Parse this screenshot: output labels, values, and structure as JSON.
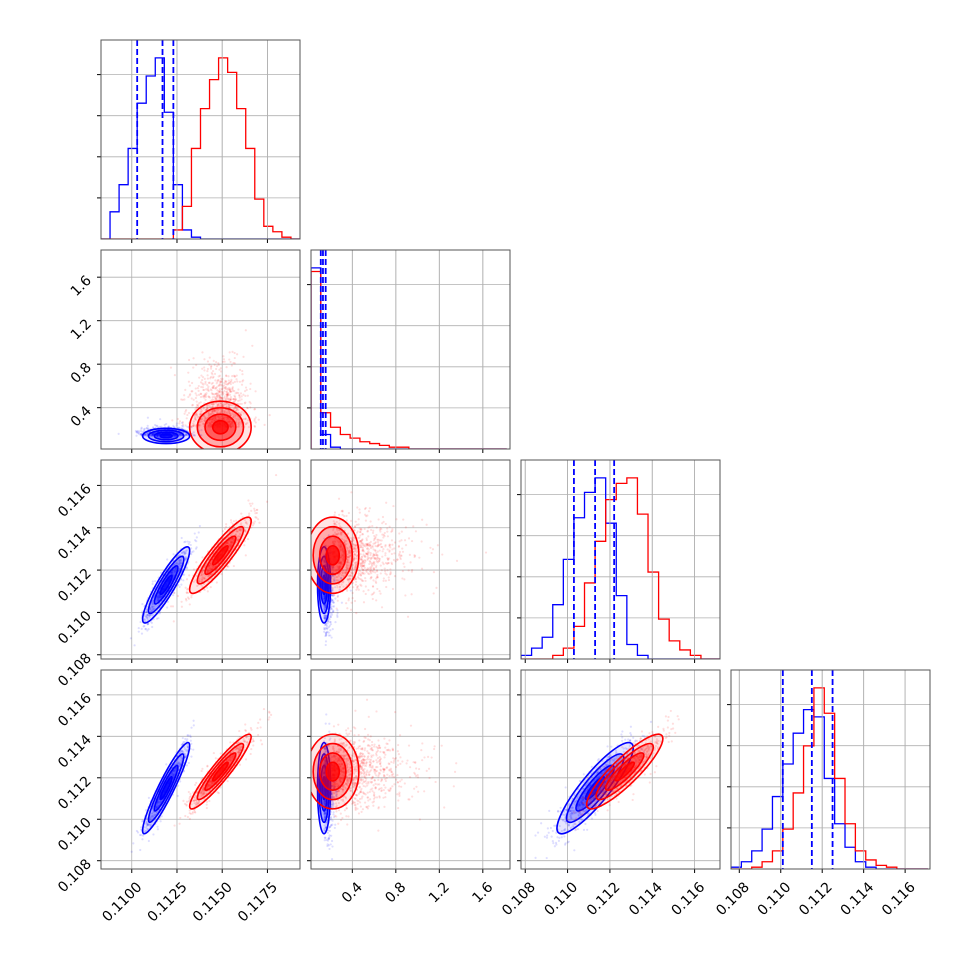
{
  "colors": {
    "blue": "#0000ff",
    "red": "#ff0000"
  },
  "chart_data": {
    "type": "corner",
    "title": "",
    "grid": true,
    "n_params": 4,
    "params": [
      {
        "range": [
          0.1083,
          0.1193
        ],
        "ticks": [
          0.11,
          0.1125,
          0.115,
          0.1175
        ],
        "tick_labels": [
          "0.1100",
          "0.1125",
          "0.1150",
          "0.1175"
        ]
      },
      {
        "range": [
          0.02,
          1.85
        ],
        "ticks": [
          0.4,
          0.8,
          1.2,
          1.6
        ],
        "tick_labels": [
          "0.4",
          "0.8",
          "1.2",
          "1.6"
        ]
      },
      {
        "range": [
          0.1078,
          0.1172
        ],
        "ticks": [
          0.108,
          0.11,
          0.112,
          0.114,
          0.116
        ],
        "tick_labels": [
          "0.108",
          "0.110",
          "0.112",
          "0.114",
          "0.116"
        ]
      },
      {
        "range": [
          0.1076,
          0.1172
        ],
        "ticks": [
          0.108,
          0.11,
          0.112,
          0.114,
          0.116
        ],
        "tick_labels": [
          "0.108",
          "0.110",
          "0.112",
          "0.114",
          "0.116"
        ]
      }
    ],
    "series": [
      {
        "color": "blue",
        "mean": [
          0.1119,
          0.14,
          0.1113,
          0.1115
        ],
        "sd": [
          0.00065,
          0.02,
          0.0009,
          0.0011
        ],
        "corr": [
          [
            1,
            0,
            0.9,
            0.93
          ],
          [
            0,
            1,
            0,
            0
          ],
          [
            0.9,
            0,
            1,
            0.88
          ],
          [
            0.93,
            0,
            0.88,
            1
          ]
        ]
      },
      {
        "color": "red",
        "mean": [
          0.1149,
          0.22,
          0.1127,
          0.1123
        ],
        "sd": [
          0.00085,
          0.2,
          0.0009,
          0.0009
        ],
        "corr": [
          [
            1,
            0,
            0.9,
            0.93
          ],
          [
            0,
            1,
            0,
            0
          ],
          [
            0.9,
            0,
            1,
            0.88
          ],
          [
            0.93,
            0,
            0.88,
            1
          ]
        ]
      }
    ],
    "quantile_lines": [
      {
        "param": 0,
        "color": "blue",
        "values": [
          0.1103,
          0.1117,
          0.1123
        ]
      },
      {
        "param": 1,
        "color": "blue",
        "values": [
          0.11,
          0.13,
          0.155
        ]
      },
      {
        "param": 2,
        "color": "blue",
        "values": [
          0.1103,
          0.1113,
          0.1122
        ]
      },
      {
        "param": 3,
        "color": "blue",
        "values": [
          0.1101,
          0.1115,
          0.1125
        ]
      }
    ],
    "histograms": [
      {
        "param": 0,
        "bin_edges": [
          0.1083,
          0.1088,
          0.1093,
          0.1098,
          0.1103,
          0.1108,
          0.1113,
          0.1118,
          0.1123,
          0.1128,
          0.1133,
          0.1138,
          0.1143,
          0.1148,
          0.1153,
          0.1158,
          0.1163,
          0.1168,
          0.1173,
          0.1178,
          0.1183,
          0.1188,
          0.1193
        ],
        "blue": [
          0,
          0.15,
          0.3,
          0.5,
          0.75,
          0.9,
          1.0,
          0.7,
          0.3,
          0.05,
          0.01,
          0,
          0,
          0,
          0,
          0,
          0,
          0,
          0,
          0,
          0,
          0
        ],
        "red": [
          0,
          0,
          0,
          0,
          0,
          0,
          0,
          0,
          0.05,
          0.18,
          0.5,
          0.72,
          0.88,
          1.0,
          0.92,
          0.72,
          0.5,
          0.22,
          0.07,
          0.04,
          0.01,
          0
        ]
      },
      {
        "param": 1,
        "bin_edges": [
          0.02,
          0.11,
          0.2,
          0.29,
          0.38,
          0.47,
          0.56,
          0.65,
          0.74,
          0.83,
          0.92,
          1.01,
          1.1,
          1.19,
          1.28,
          1.37,
          1.46,
          1.55,
          1.64,
          1.73,
          1.82
        ],
        "blue": [
          1.0,
          0.08,
          0.01,
          0,
          0,
          0,
          0,
          0,
          0,
          0,
          0,
          0,
          0,
          0,
          0,
          0,
          0,
          0,
          0,
          0
        ],
        "red": [
          0.98,
          0.2,
          0.12,
          0.08,
          0.06,
          0.04,
          0.03,
          0.02,
          0.01,
          0.01,
          0,
          0,
          0,
          0,
          0,
          0,
          0,
          0,
          0,
          0
        ]
      },
      {
        "param": 2,
        "bin_edges": [
          0.1078,
          0.1083,
          0.1088,
          0.1093,
          0.1098,
          0.1103,
          0.1108,
          0.1113,
          0.1118,
          0.1123,
          0.1128,
          0.1133,
          0.1138,
          0.1143,
          0.1148,
          0.1153,
          0.1158,
          0.1163,
          0.1168,
          0.1173
        ],
        "blue": [
          0.02,
          0.06,
          0.12,
          0.3,
          0.55,
          0.78,
          0.92,
          1.0,
          0.75,
          0.35,
          0.08,
          0.02,
          0,
          0,
          0,
          0,
          0,
          0,
          0
        ],
        "red": [
          0,
          0,
          0,
          0.02,
          0.06,
          0.18,
          0.42,
          0.65,
          0.88,
          0.97,
          1.0,
          0.8,
          0.48,
          0.22,
          0.1,
          0.05,
          0.02,
          0,
          0
        ]
      },
      {
        "param": 3,
        "bin_edges": [
          0.1076,
          0.1081,
          0.1086,
          0.1091,
          0.1096,
          0.1101,
          0.1106,
          0.1111,
          0.1116,
          0.1121,
          0.1126,
          0.1131,
          0.1136,
          0.1141,
          0.1146,
          0.1151,
          0.1156,
          0.1161,
          0.1166,
          0.1171
        ],
        "blue": [
          0.01,
          0.04,
          0.1,
          0.22,
          0.4,
          0.58,
          0.75,
          0.88,
          0.84,
          0.5,
          0.25,
          0.12,
          0.04,
          0.01,
          0,
          0,
          0,
          0,
          0
        ],
        "red": [
          0,
          0,
          0.01,
          0.04,
          0.1,
          0.22,
          0.42,
          0.68,
          1.0,
          0.86,
          0.5,
          0.25,
          0.1,
          0.05,
          0.02,
          0.01,
          0,
          0,
          0
        ]
      }
    ]
  }
}
